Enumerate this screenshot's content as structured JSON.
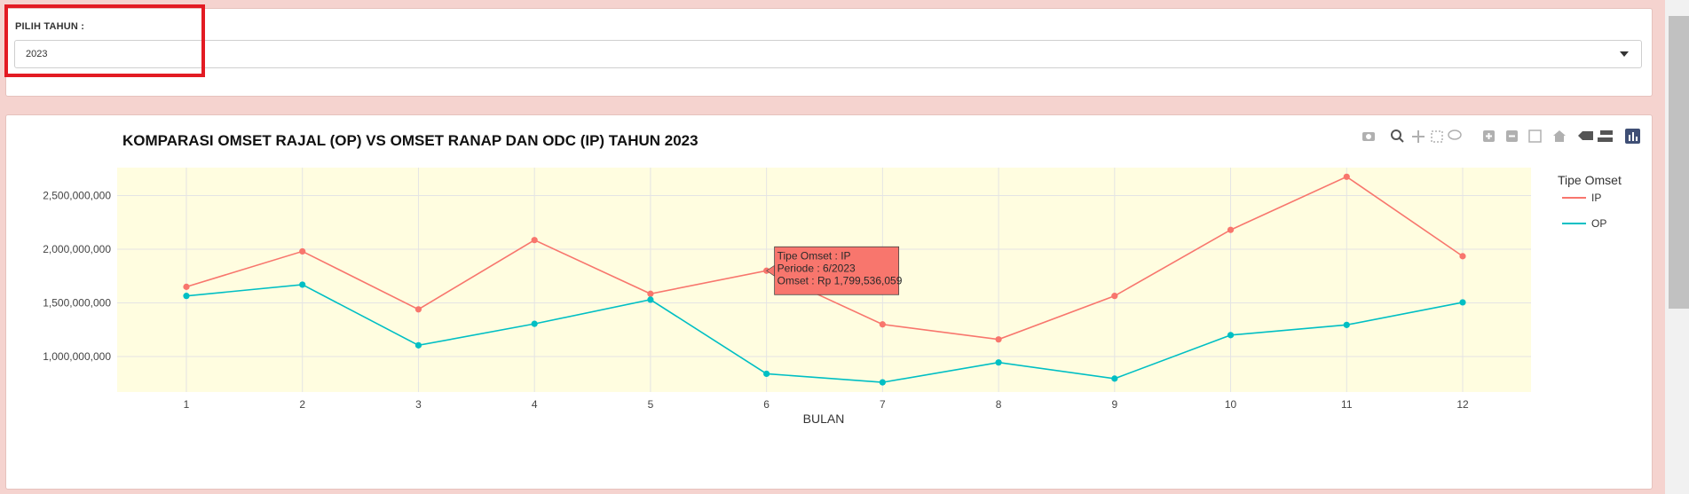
{
  "filter": {
    "label": "PILIH TAHUN :",
    "selected_value": "2023"
  },
  "modebar": {
    "icons": [
      "camera-icon",
      "zoom-icon",
      "pan-icon",
      "box-select-icon",
      "lasso-select-icon",
      "zoom-in-icon",
      "zoom-out-icon",
      "autoscale-icon",
      "reset-axes-icon",
      "hover-closest-icon",
      "hover-compare-icon",
      "plotly-logo-icon"
    ]
  },
  "chart_data": {
    "type": "line",
    "title": "KOMPARASI OMSET RAJAL (OP) VS OMSET RANAP DAN ODC (IP) TAHUN 2023",
    "xlabel": "BULAN",
    "ylabel": "",
    "x": [
      1,
      2,
      3,
      4,
      5,
      6,
      7,
      8,
      9,
      10,
      11,
      12
    ],
    "x_ticks": [
      "1",
      "2",
      "3",
      "4",
      "5",
      "6",
      "7",
      "8",
      "9",
      "10",
      "11",
      "12"
    ],
    "y_ticks": [
      "1,000,000,000",
      "1,500,000,000",
      "2,000,000,000",
      "2,500,000,000"
    ],
    "y_tick_values": [
      1000000000,
      1500000000,
      2000000000,
      2500000000
    ],
    "ylim": [
      670000000,
      2760000000
    ],
    "grid": true,
    "plot_bgcolor": "#fffde0",
    "legend": {
      "title": "Tipe Omset",
      "position": "right"
    },
    "series": [
      {
        "name": "IP",
        "color": "#f8766d",
        "values": [
          1650000000,
          1980000000,
          1440000000,
          2085000000,
          1585000000,
          1799536059,
          1300000000,
          1160000000,
          1565000000,
          2180000000,
          2675000000,
          1935000000
        ]
      },
      {
        "name": "OP",
        "color": "#00bfc4",
        "values": [
          1565000000,
          1670000000,
          1105000000,
          1305000000,
          1530000000,
          840000000,
          760000000,
          945000000,
          795000000,
          1200000000,
          1295000000,
          1505000000
        ]
      }
    ],
    "tooltip": {
      "series_index": 0,
      "point_index": 5,
      "lines": [
        "Tipe Omset : IP",
        "Periode : 6/2023",
        "Omset : Rp 1,799,536,059"
      ]
    }
  }
}
